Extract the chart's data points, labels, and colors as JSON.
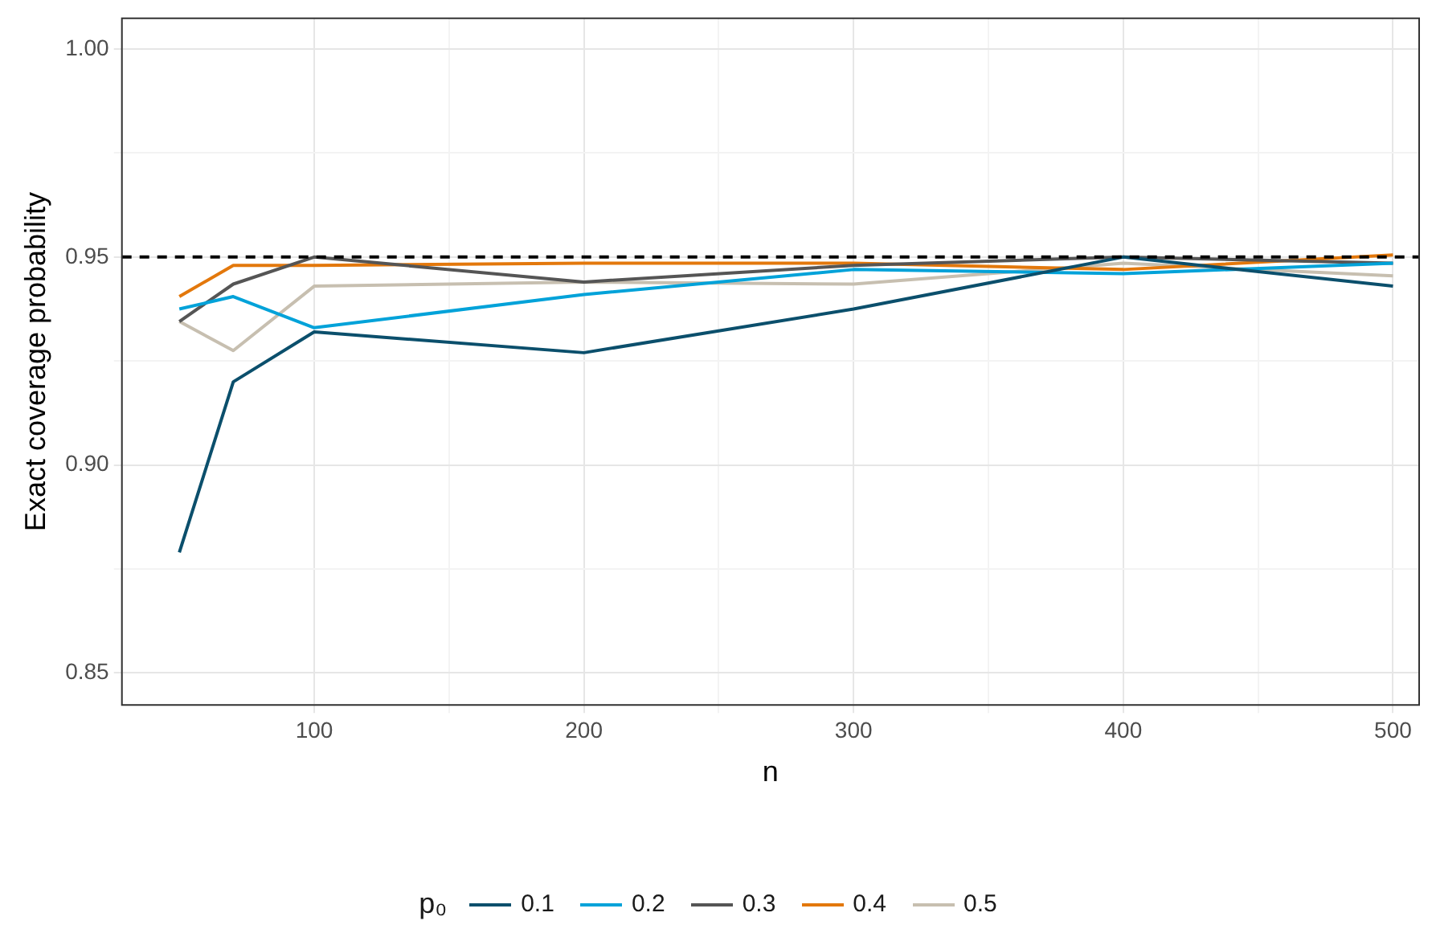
{
  "chart_data": {
    "type": "line",
    "xlabel": "n",
    "ylabel": "Exact coverage probability",
    "legend_title": "p₀",
    "legend": "bottom",
    "grid": true,
    "marker": "none",
    "line_style": "solid",
    "x": [
      50,
      70,
      100,
      200,
      300,
      400,
      500
    ],
    "xlim": [
      28.7,
      509.7
    ],
    "xticks": [
      100,
      {
        "value": 150,
        "label": null
      },
      200,
      {
        "value": 250,
        "label": null
      },
      300,
      {
        "value": 350,
        "label": null
      },
      400,
      {
        "value": 450,
        "label": null
      },
      500
    ],
    "ylim": [
      0.8423,
      1.0074
    ],
    "yticks": [
      {
        "value": 0.85,
        "label": "0.85"
      },
      {
        "value": 0.875,
        "label": null
      },
      {
        "value": 0.9,
        "label": "0.90"
      },
      {
        "value": 0.925,
        "label": null
      },
      {
        "value": 0.95,
        "label": "0.95"
      },
      {
        "value": 0.975,
        "label": null
      },
      {
        "value": 1.0,
        "label": "1.00"
      }
    ],
    "ref_lines": [
      {
        "axis": "y",
        "value": 0.95,
        "color": "#000000",
        "line_style": "dashed"
      }
    ],
    "series": [
      {
        "name": "0.1",
        "color": "#0b4f6c",
        "values": [
          0.879,
          0.92,
          0.932,
          0.927,
          0.9375,
          0.95,
          0.943
        ]
      },
      {
        "name": "0.2",
        "color": "#01a2d9",
        "values": [
          0.9375,
          0.9405,
          0.933,
          0.941,
          0.947,
          0.946,
          0.9485
        ]
      },
      {
        "name": "0.3",
        "color": "#555555",
        "values": [
          0.9345,
          0.9435,
          0.95,
          0.944,
          0.948,
          0.95,
          0.9485
        ]
      },
      {
        "name": "0.4",
        "color": "#e3780c",
        "values": [
          0.9405,
          0.948,
          0.948,
          0.9485,
          0.9485,
          0.947,
          0.9505
        ]
      },
      {
        "name": "0.5",
        "color": "#c7bfb0",
        "values": [
          0.9345,
          0.9275,
          0.943,
          0.944,
          0.9435,
          0.9485,
          0.9455
        ]
      }
    ]
  }
}
